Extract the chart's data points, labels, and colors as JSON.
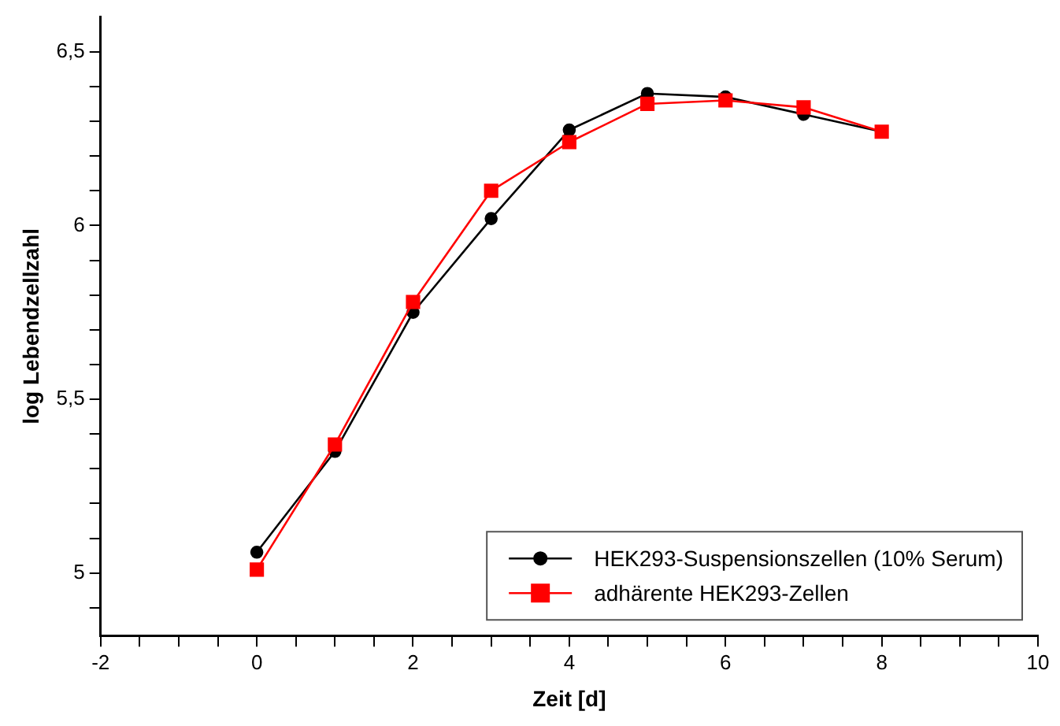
{
  "chart_data": {
    "type": "line",
    "xlabel": "Zeit [d]",
    "ylabel": "log Lebendzellzahl",
    "x": [
      0,
      1,
      2,
      3,
      4,
      5,
      6,
      7,
      8
    ],
    "series": [
      {
        "name": "HEK293-Suspensionszellen (10% Serum)",
        "color": "#000000",
        "marker": "circle",
        "values": [
          5.06,
          5.35,
          5.75,
          6.02,
          6.275,
          6.38,
          6.37,
          6.32,
          6.27
        ]
      },
      {
        "name": "adhärente HEK293-Zellen",
        "color": "#ff0000",
        "marker": "square",
        "values": [
          5.01,
          5.37,
          5.78,
          6.1,
          6.24,
          6.35,
          6.36,
          6.34,
          6.27
        ]
      }
    ],
    "xlim": [
      -2,
      10
    ],
    "xticks": [
      -2,
      {
        "value": -1.5,
        "label": null
      },
      {
        "value": -1,
        "label": null
      },
      {
        "value": -0.5,
        "label": null
      },
      0,
      {
        "value": 0.5,
        "label": null
      },
      {
        "value": 1,
        "label": null
      },
      {
        "value": 1.5,
        "label": null
      },
      2,
      {
        "value": 2.5,
        "label": null
      },
      {
        "value": 3,
        "label": null
      },
      {
        "value": 3.5,
        "label": null
      },
      4,
      {
        "value": 4.5,
        "label": null
      },
      {
        "value": 5,
        "label": null
      },
      {
        "value": 5.5,
        "label": null
      },
      6,
      {
        "value": 6.5,
        "label": null
      },
      {
        "value": 7,
        "label": null
      },
      {
        "value": 7.5,
        "label": null
      },
      8,
      {
        "value": 8.5,
        "label": null
      },
      {
        "value": 9,
        "label": null
      },
      {
        "value": 9.5,
        "label": null
      },
      10
    ],
    "ylim": [
      4.82,
      6.6
    ],
    "yticks": [
      {
        "value": 4.9,
        "label": null
      },
      {
        "value": 5,
        "label": "5"
      },
      {
        "value": 5.1,
        "label": null
      },
      {
        "value": 5.2,
        "label": null
      },
      {
        "value": 5.3,
        "label": null
      },
      {
        "value": 5.4,
        "label": null
      },
      {
        "value": 5.5,
        "label": "5,5"
      },
      {
        "value": 5.6,
        "label": null
      },
      {
        "value": 5.7,
        "label": null
      },
      {
        "value": 5.8,
        "label": null
      },
      {
        "value": 5.9,
        "label": null
      },
      {
        "value": 6,
        "label": "6"
      },
      {
        "value": 6.1,
        "label": null
      },
      {
        "value": 6.2,
        "label": null
      },
      {
        "value": 6.3,
        "label": null
      },
      {
        "value": 6.4,
        "label": null
      },
      {
        "value": 6.5,
        "label": "6,5"
      }
    ],
    "grid": false,
    "legend": "bottom right",
    "line_style": "solid"
  }
}
